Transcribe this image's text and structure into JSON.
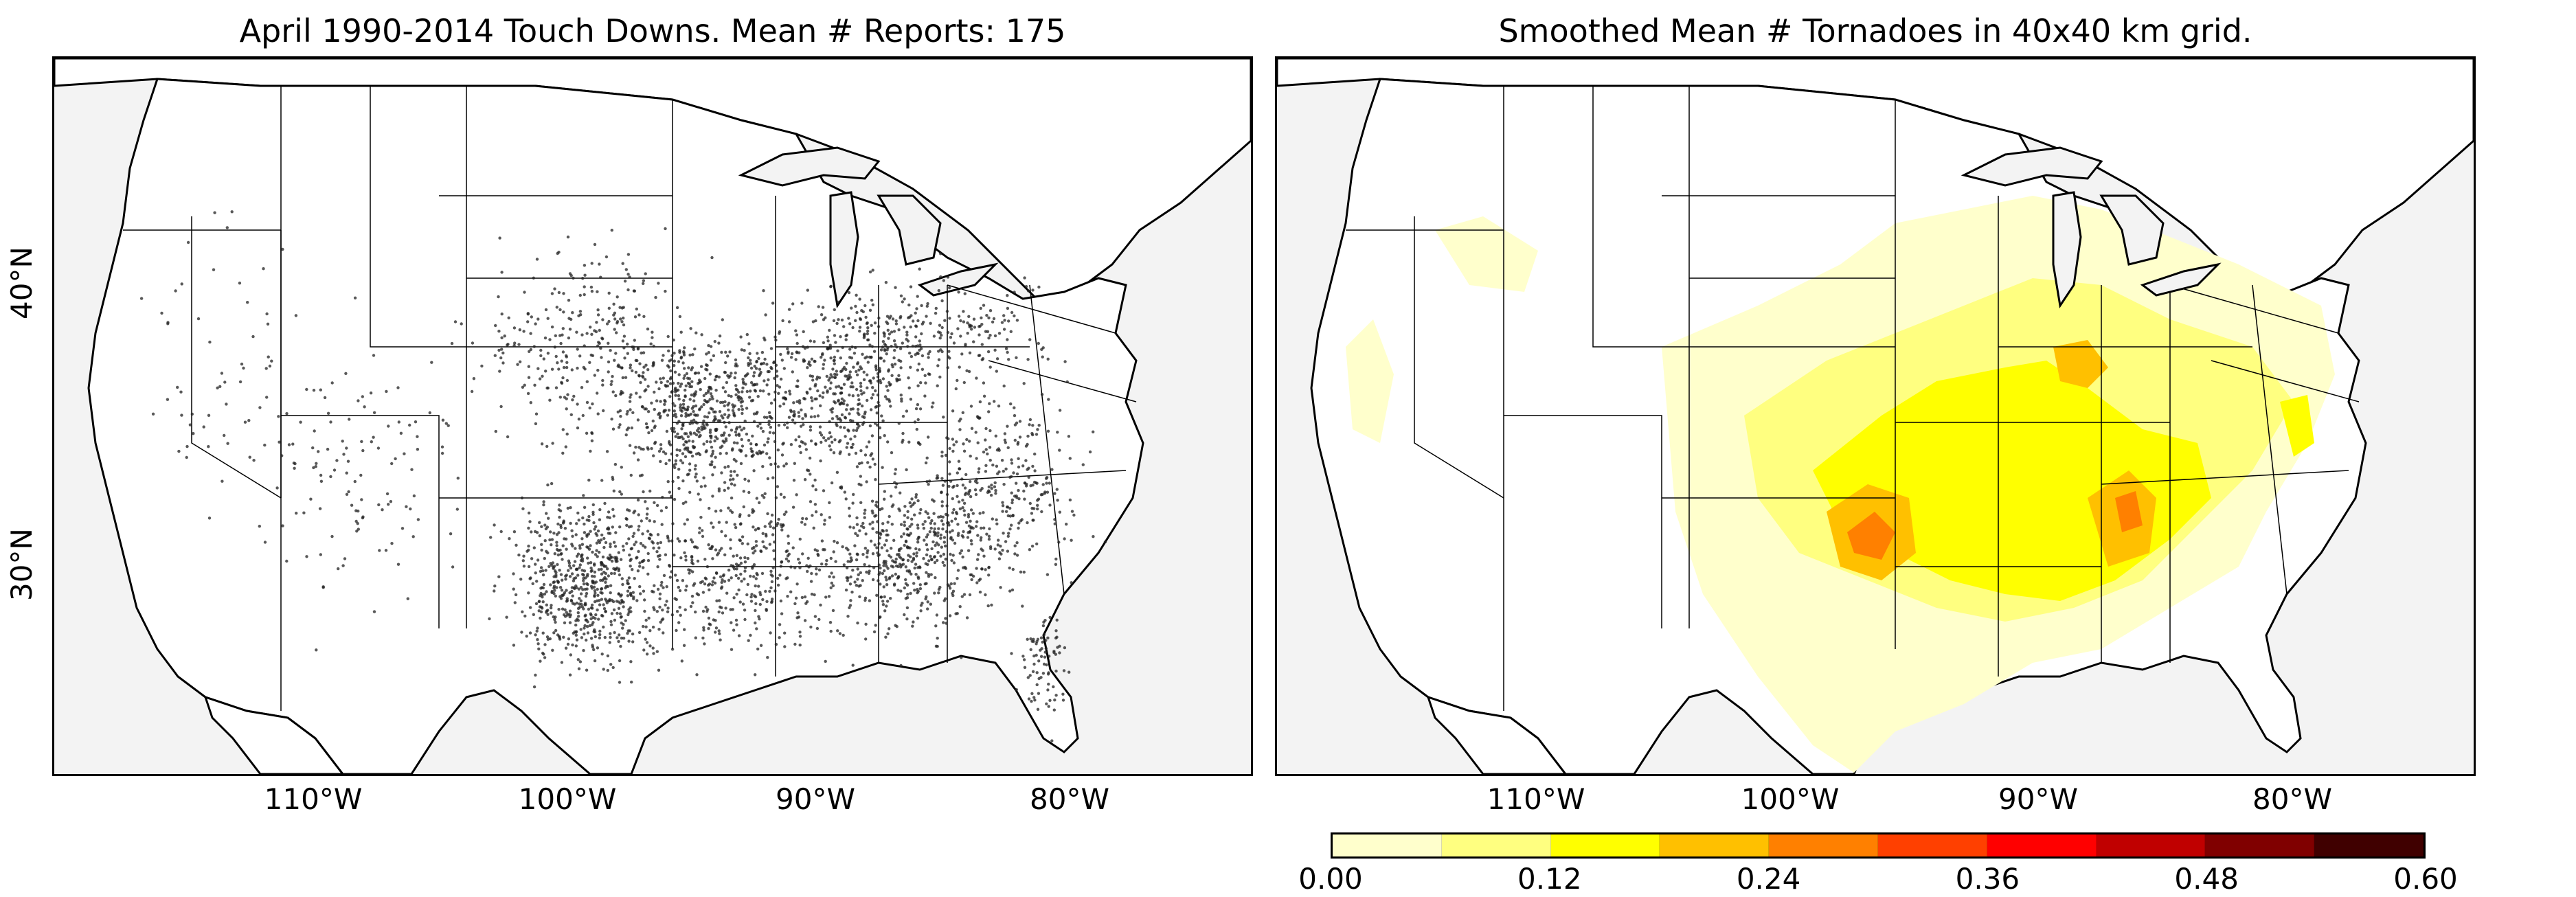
{
  "maps": [
    {
      "title": "April 1990-2014 Touch Downs. Mean # Reports: 175",
      "layer": "tornado touchdown reports (points)",
      "point_color": "#222222"
    },
    {
      "title": "Smoothed Mean # Tornadoes in 40x40 km grid.",
      "layer": "smoothed tornado density (filled contours)"
    }
  ],
  "lon_labels": [
    "110°W",
    "100°W",
    "90°W",
    "80°W"
  ],
  "lat_labels": [
    "40°N",
    "30°N"
  ],
  "colorbar": {
    "colors": [
      "#ffffcc",
      "#ffff80",
      "#ffff00",
      "#ffc000",
      "#ff8000",
      "#ff4000",
      "#ff0000",
      "#c00000",
      "#800000",
      "#400000"
    ],
    "ticks": [
      "0.00",
      "0.12",
      "0.24",
      "0.36",
      "0.48",
      "0.60"
    ],
    "range": [
      0.0,
      0.6
    ]
  },
  "colors": {
    "land": "#ffffff",
    "ocean": "#f3f3f3",
    "borders": "#000000"
  }
}
